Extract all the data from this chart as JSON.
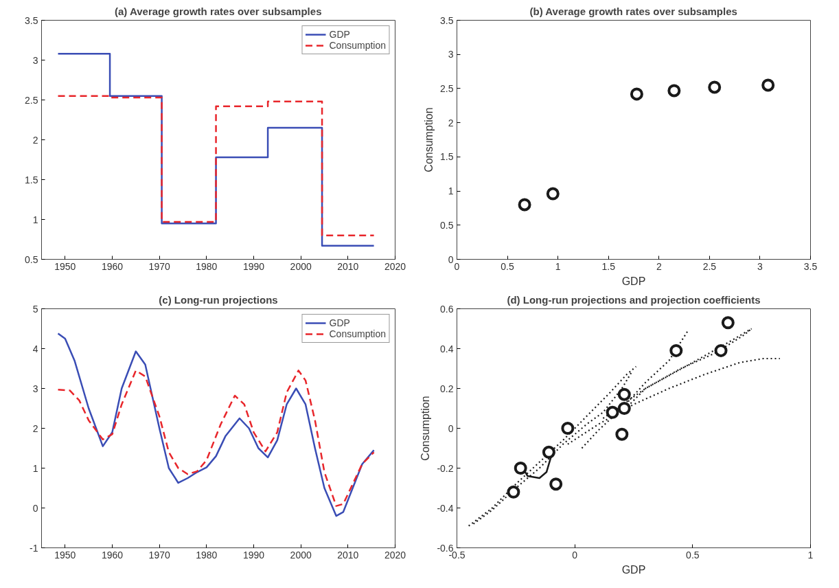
{
  "chart_data": [
    {
      "type": "step",
      "title": "(a) Average growth rates over subsamples",
      "x": [
        1948.5,
        1959.5,
        1970.5,
        1982,
        1993,
        2004.5,
        2015.5
      ],
      "xlim": [
        1945,
        2020
      ],
      "xticks": [
        1950,
        1960,
        1970,
        1980,
        1990,
        2000,
        2010,
        2020
      ],
      "ylim": [
        0.5,
        3.5
      ],
      "yticks": [
        0.5,
        1,
        1.5,
        2,
        2.5,
        3,
        3.5
      ],
      "legend": "top right",
      "series": [
        {
          "name": "GDP",
          "color": "#3a4db5",
          "line_style": "solid",
          "values": [
            3.08,
            2.55,
            0.95,
            1.78,
            2.15,
            0.67,
            0.67
          ]
        },
        {
          "name": "Consumption",
          "color": "#e8262b",
          "line_style": "dashed",
          "values": [
            2.55,
            2.53,
            0.97,
            2.42,
            2.48,
            0.8,
            0.8
          ]
        }
      ]
    },
    {
      "type": "scatter",
      "title": "(b) Average growth rates over subsamples",
      "xlabel": "GDP",
      "ylabel": "Consumption",
      "xlim": [
        0,
        3.5
      ],
      "xticks": [
        0,
        0.5,
        1,
        1.5,
        2,
        2.5,
        3,
        3.5
      ],
      "ylim": [
        0,
        3.5
      ],
      "yticks": [
        0,
        0.5,
        1,
        1.5,
        2,
        2.5,
        3,
        3.5
      ],
      "marker": "circle",
      "series": [
        {
          "color": "#1a1a1a",
          "x": [
            0.67,
            0.95,
            1.78,
            2.15,
            2.55,
            3.08
          ],
          "values": [
            0.8,
            0.96,
            2.42,
            2.47,
            2.52,
            2.55
          ]
        }
      ]
    },
    {
      "type": "line",
      "title": "(c) Long-run projections",
      "xlim": [
        1945,
        2020
      ],
      "xticks": [
        1950,
        1960,
        1970,
        1980,
        1990,
        2000,
        2010,
        2020
      ],
      "ylim": [
        -1,
        5
      ],
      "yticks": [
        -1,
        0,
        1,
        2,
        3,
        4,
        5
      ],
      "legend": "top right",
      "series": [
        {
          "name": "GDP",
          "color": "#3a4db5",
          "line_style": "solid",
          "x": [
            1948.5,
            1950,
            1952,
            1955,
            1958,
            1960,
            1962,
            1965,
            1967,
            1970,
            1972,
            1974,
            1976,
            1978,
            1980,
            1982,
            1984,
            1987,
            1989,
            1991,
            1993,
            1995,
            1997,
            1999,
            2001,
            2003,
            2005,
            2007.5,
            2009,
            2011,
            2013,
            2015.5
          ],
          "values": [
            4.38,
            4.25,
            3.7,
            2.5,
            1.55,
            1.9,
            3.0,
            3.93,
            3.6,
            2.0,
            1.0,
            0.63,
            0.75,
            0.9,
            1.02,
            1.3,
            1.8,
            2.25,
            2.0,
            1.5,
            1.27,
            1.7,
            2.6,
            3.0,
            2.6,
            1.5,
            0.5,
            -0.2,
            -0.1,
            0.5,
            1.1,
            1.45
          ]
        },
        {
          "name": "Consumption",
          "color": "#e8262b",
          "line_style": "dashed",
          "x": [
            1948.5,
            1951,
            1953,
            1955,
            1958,
            1960,
            1962,
            1965,
            1967,
            1970,
            1972,
            1974,
            1976,
            1978,
            1980,
            1983,
            1986,
            1988,
            1990,
            1992.5,
            1995,
            1997,
            1999.5,
            2001,
            2003,
            2005,
            2007.5,
            2009,
            2011,
            2013,
            2015.5
          ],
          "values": [
            2.97,
            2.95,
            2.7,
            2.2,
            1.72,
            1.85,
            2.6,
            3.45,
            3.3,
            2.3,
            1.4,
            1.0,
            0.85,
            0.92,
            1.2,
            2.1,
            2.82,
            2.6,
            1.9,
            1.42,
            1.9,
            2.9,
            3.45,
            3.2,
            2.2,
            0.9,
            0.05,
            0.1,
            0.6,
            1.1,
            1.4
          ]
        }
      ]
    },
    {
      "type": "scatter",
      "title": "(d) Long-run projections and projection coefficients",
      "xlabel": "GDP",
      "ylabel": "Consumption",
      "xlim": [
        -0.5,
        1
      ],
      "xticks": [
        -0.5,
        0,
        0.5,
        1
      ],
      "ylim": [
        -0.6,
        0.6
      ],
      "yticks": [
        -0.6,
        -0.4,
        -0.2,
        0,
        0.2,
        0.4,
        0.6
      ],
      "marker": "circle",
      "series": [
        {
          "type": "line",
          "marker": "none",
          "line_style": "dotted",
          "color": "#1a1a1a",
          "x": [
            -0.45,
            -0.35,
            -0.25,
            -0.15,
            -0.05,
            0.05,
            0.15,
            0.22,
            0.26
          ],
          "values": [
            -0.49,
            -0.4,
            -0.28,
            -0.17,
            -0.06,
            0.06,
            0.18,
            0.27,
            0.31
          ]
        },
        {
          "type": "line",
          "marker": "none",
          "line_style": "dotted",
          "color": "#1a1a1a",
          "x": [
            -0.43,
            -0.35,
            -0.25,
            -0.15,
            -0.05,
            0.05,
            0.12,
            0.2,
            0.24
          ],
          "values": [
            -0.48,
            -0.41,
            -0.3,
            -0.2,
            -0.08,
            0.02,
            0.08,
            0.2,
            0.28
          ]
        },
        {
          "type": "line",
          "marker": "none",
          "line_style": "dotted",
          "color": "#1a1a1a",
          "x": [
            0.03,
            0.1,
            0.2,
            0.3,
            0.4,
            0.48
          ],
          "values": [
            -0.1,
            -0.01,
            0.1,
            0.23,
            0.34,
            0.49
          ]
        },
        {
          "type": "line",
          "marker": "none",
          "line_style": "dotted",
          "color": "#1a1a1a",
          "x": [
            -0.03,
            0.1,
            0.25,
            0.4,
            0.55,
            0.7,
            0.8,
            0.87
          ],
          "values": [
            -0.08,
            0.02,
            0.12,
            0.2,
            0.27,
            0.33,
            0.35,
            0.35
          ]
        },
        {
          "type": "line",
          "marker": "none",
          "line_style": "dotted",
          "color": "#1a1a1a",
          "x": [
            0.12,
            0.3,
            0.5,
            0.65,
            0.75
          ],
          "values": [
            0.05,
            0.2,
            0.33,
            0.43,
            0.5
          ]
        },
        {
          "type": "line",
          "marker": "none",
          "line_style": "dotted",
          "color": "#1a1a1a",
          "x": [
            0.2,
            0.3,
            0.45,
            0.6,
            0.72,
            0.75
          ],
          "values": [
            0.08,
            0.2,
            0.3,
            0.38,
            0.47,
            0.5
          ]
        },
        {
          "type": "line",
          "marker": "none",
          "line_style": "solid",
          "color": "#1a1a1a",
          "x": [
            -0.22,
            -0.2,
            -0.15,
            -0.12,
            -0.09
          ],
          "values": [
            -0.2,
            -0.24,
            -0.25,
            -0.22,
            -0.1
          ]
        },
        {
          "color": "#1a1a1a",
          "x": [
            -0.26,
            -0.23,
            -0.11,
            -0.08,
            -0.03,
            0.16,
            0.21,
            0.21,
            0.2,
            0.43,
            0.62,
            0.65
          ],
          "values": [
            -0.32,
            -0.2,
            -0.12,
            -0.28,
            0.0,
            0.08,
            0.17,
            0.1,
            -0.03,
            0.39,
            0.39,
            0.53
          ]
        }
      ]
    }
  ]
}
